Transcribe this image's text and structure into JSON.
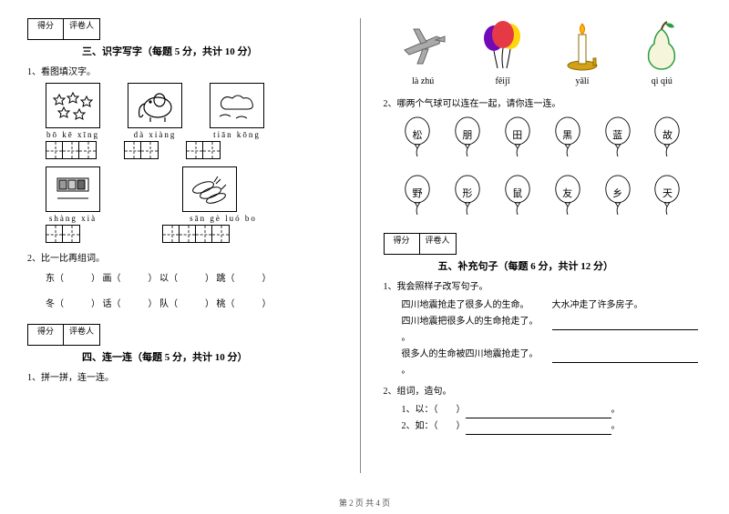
{
  "scoreLabels": {
    "score": "得分",
    "grader": "评卷人"
  },
  "left": {
    "section3": {
      "title": "三、识字写字（每题 5 分，共计 10 分）",
      "q1": "1、看图填汉字。"
    },
    "row1": {
      "pinyin": [
        "bō  kē  xīng",
        "dà  xiàng",
        "tiān    kōng"
      ],
      "cells": [
        3,
        2,
        2
      ]
    },
    "row2": {
      "pinyin": [
        "shàng  xià",
        "sān  gè  luó  bo"
      ],
      "cells": [
        2,
        4
      ]
    },
    "q2": "2、比一比再组词。",
    "compare": {
      "line1": [
        "东（",
        "）",
        "画（",
        "）",
        "以（",
        "）",
        "跳（",
        "）"
      ],
      "line2": [
        "冬（",
        "）",
        "话（",
        "）",
        "队（",
        "）",
        "桃（",
        "）"
      ]
    },
    "section4": {
      "title": "四、连一连（每题 5 分，共计 10 分）",
      "q1": "1、拼一拼，连一连。"
    }
  },
  "right": {
    "topPinyin": [
      "là  zhú",
      "fēijī",
      "yālí",
      "qì  qiú"
    ],
    "q2": "2、哪两个气球可以连在一起，请你连一连。",
    "balloonRow1": [
      "松",
      "朋",
      "田",
      "黑",
      "蓝",
      "故"
    ],
    "balloonRow2": [
      "野",
      "形",
      "鼠",
      "友",
      "乡",
      "天"
    ],
    "section5": {
      "title": "五、补充句子（每题 6 分，共计 12 分）",
      "q1": "1、我会照样子改写句子。"
    },
    "sentences": {
      "s1": "四川地震抢走了很多人的生命。",
      "s1b": "大水冲走了许多房子。",
      "s2": "四川地震把很多人的生命抢走了。",
      "s3": "很多人的生命被四川地震抢走了。"
    },
    "q2a": "2、组词，造句。",
    "q2b1": "1、以：（",
    "q2b2": "2、如：（"
  },
  "footer": "第 2 页  共 4 页",
  "colors": {
    "airplane": "#888",
    "balloonRed": "#e63946",
    "balloonYellow": "#ffd60a",
    "balloonPurple": "#7209b7",
    "candleStick": "#fff",
    "candleFlame": "#ffb703",
    "candleHolder": "#d4a017",
    "pearFill": "#f5f5dc",
    "pearStroke": "#2a9d3f"
  }
}
